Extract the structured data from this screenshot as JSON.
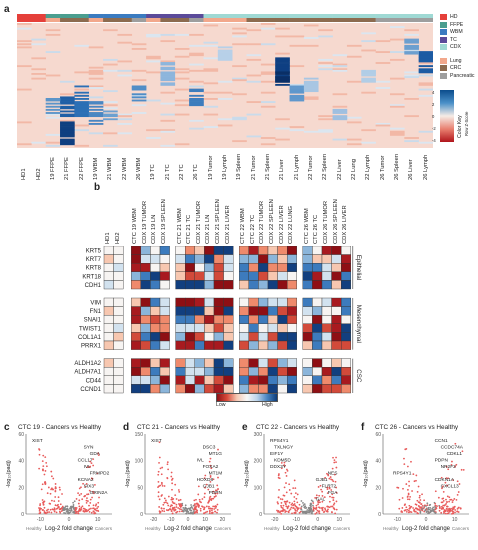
{
  "panels": {
    "a": "a",
    "b": "b",
    "c": "c",
    "d": "d",
    "e": "e",
    "f": "f"
  },
  "panel_a": {
    "legend": [
      {
        "label": "HD",
        "color": "#e5403a"
      },
      {
        "label": "FFPE",
        "color": "#4a9e8f"
      },
      {
        "label": "WBM",
        "color": "#3a7bc0"
      },
      {
        "label": "TC",
        "color": "#5b4b9a"
      },
      {
        "label": "CDX",
        "color": "#9fd9d4"
      },
      {
        "label": "Lung",
        "color": "#f2a88c"
      },
      {
        "label": "CRC",
        "color": "#8c6b4f"
      },
      {
        "label": "Pancreatic",
        "color": "#9e9e9e"
      }
    ],
    "color_key_title": "Color Key",
    "color_key_sub": "Row Z-Score",
    "color_key_ticks": [
      "4",
      "2",
      "0",
      "-2",
      "-4"
    ],
    "columns": [
      "HD1",
      "HD2",
      "19 FFPE",
      "21 FFPE",
      "22 FFPE",
      "19 WBM",
      "21 WBM",
      "22 WBM",
      "26 WBM",
      "19 TC",
      "21 TC",
      "22 TC",
      "26 TC",
      "19 Tumor",
      "19 Lymph",
      "19 Spleen",
      "21 Tumor",
      "21 Spleen",
      "21 Liver",
      "21 Lymph",
      "22 Tumor",
      "22 Spleen",
      "22 Liver",
      "22 Lung",
      "22 Lymph",
      "26 Tumor",
      "26 Spleen",
      "26 Liver",
      "26 Lymph"
    ]
  },
  "panel_b": {
    "columns": [
      "HD1",
      "HD2",
      "CTC 19 WBM",
      "CDX 19 TUMOR",
      "CDX 19 LN",
      "CDX 19 SPLEEN",
      "CTC 21 WBM",
      "CTC 21 TC",
      "CDX 21 TUMOR",
      "CDX 21 LN",
      "CDX 21 SPLEEN",
      "CDX 21 LIVER",
      "CTC 22 WBM",
      "CTC 22 TC",
      "CDX 22 TUMOR",
      "CDX 22 SPLEEN",
      "CDX 22 LIVER",
      "CDX 22 LUNG",
      "CTC 26 WBM",
      "CTC 26 TC",
      "CDX 26 TUMOR",
      "CDX 26 SPLEEN",
      "CDX 26 LIVER"
    ],
    "groups": [
      {
        "name": "Epithelial",
        "genes": [
          "KRT5",
          "KRT7",
          "KRT8",
          "KRT18",
          "CDH1"
        ]
      },
      {
        "name": "Mesenchymal",
        "genes": [
          "VIM",
          "FN1",
          "SNAI1",
          "TWIST1",
          "COL1A1",
          "PRRX1"
        ]
      },
      {
        "name": "CSC",
        "genes": [
          "ALDH1A2",
          "ALDH7A1",
          "CD44",
          "CCND1"
        ]
      }
    ],
    "scale_low": "Low",
    "scale_high": "High"
  },
  "volcanoes": [
    {
      "letter": "c",
      "title": "CTC 19 - Cancers vs Healthy",
      "ylabel": "-log₁₀(padj)",
      "xlabel": "Log-2 fold change",
      "left": "Healthy",
      "right": "Cancers",
      "yticks": [
        "60",
        "40",
        "20",
        "0"
      ],
      "xticks": [
        "-10",
        "0",
        "10"
      ],
      "genes": [
        "XIST",
        "SYN",
        "GDA",
        "CCL17",
        "IVL",
        "FRMPD2",
        "KCNA2",
        "SIX3",
        "GRIN2A"
      ]
    },
    {
      "letter": "d",
      "title": "CTC 21 - Cancers vs Healthy",
      "ylabel": "-log₁₀(padj)",
      "xlabel": "Log-2 fold change",
      "left": "Healthy",
      "right": "Cancers",
      "yticks": [
        "150",
        "100",
        "50",
        "0"
      ],
      "xticks": [
        "-20",
        "-10",
        "0",
        "10",
        "20"
      ],
      "genes": [
        "XIST",
        "DSC3",
        "MT1G",
        "IVL",
        "FOXA2",
        "MT1M",
        "HOXD8",
        "GJB1",
        "PDPN"
      ]
    },
    {
      "letter": "e",
      "title": "CTC 22 - Cancers vs Healthy",
      "ylabel": "-log₁₀(padj)",
      "xlabel": "Log-2 fold change",
      "left": "Healthy",
      "right": "Cancers",
      "yticks": [
        "300",
        "200",
        "100",
        "0"
      ],
      "xticks": [
        "-20",
        "-10",
        "0",
        "10"
      ],
      "genes": [
        "RPS4Y1",
        "TXLNGY",
        "EIF1Y",
        "KDM5D",
        "DDX3Y",
        "NES",
        "GJB1",
        "FLRT2",
        "FGA",
        "GAL"
      ]
    },
    {
      "letter": "f",
      "title": "CTC 26 - Cancers vs Healthy",
      "ylabel": "-log₁₀(padj)",
      "xlabel": "Log-2 fold change",
      "left": "Healthy",
      "right": "Cancers",
      "yticks": [
        "60",
        "40",
        "20",
        "0"
      ],
      "xticks": [
        "-10",
        "0",
        "10"
      ],
      "genes": [
        "CCN1",
        "CCDC74A",
        "CDKL1",
        "PDPN",
        "NR2F2",
        "RPS4Y1",
        "CDKN1A",
        "CXCL13"
      ]
    }
  ]
}
